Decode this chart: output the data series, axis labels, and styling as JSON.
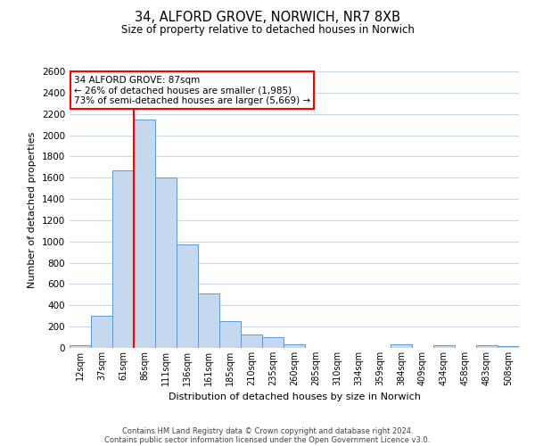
{
  "title": "34, ALFORD GROVE, NORWICH, NR7 8XB",
  "subtitle": "Size of property relative to detached houses in Norwich",
  "xlabel": "Distribution of detached houses by size in Norwich",
  "ylabel": "Number of detached properties",
  "categories": [
    "12sqm",
    "37sqm",
    "61sqm",
    "86sqm",
    "111sqm",
    "136sqm",
    "161sqm",
    "185sqm",
    "210sqm",
    "235sqm",
    "260sqm",
    "285sqm",
    "310sqm",
    "334sqm",
    "359sqm",
    "384sqm",
    "409sqm",
    "434sqm",
    "458sqm",
    "483sqm",
    "508sqm"
  ],
  "bar_heights": [
    25,
    300,
    1670,
    2150,
    1600,
    970,
    510,
    255,
    130,
    100,
    30,
    0,
    0,
    0,
    0,
    35,
    0,
    25,
    0,
    25,
    20
  ],
  "bar_color": "#c5d8ed",
  "bar_edge_color": "#5b9bd5",
  "ylim": [
    0,
    2600
  ],
  "yticks": [
    0,
    200,
    400,
    600,
    800,
    1000,
    1200,
    1400,
    1600,
    1800,
    2000,
    2200,
    2400,
    2600
  ],
  "vline_x_index": 3,
  "vline_color": "red",
  "annotation_title": "34 ALFORD GROVE: 87sqm",
  "annotation_line1": "← 26% of detached houses are smaller (1,985)",
  "annotation_line2": "73% of semi-detached houses are larger (5,669) →",
  "annotation_box_color": "white",
  "annotation_box_edge": "red",
  "footer1": "Contains HM Land Registry data © Crown copyright and database right 2024.",
  "footer2": "Contains public sector information licensed under the Open Government Licence v3.0.",
  "bg_color": "white",
  "grid_color": "#c8d8ea"
}
